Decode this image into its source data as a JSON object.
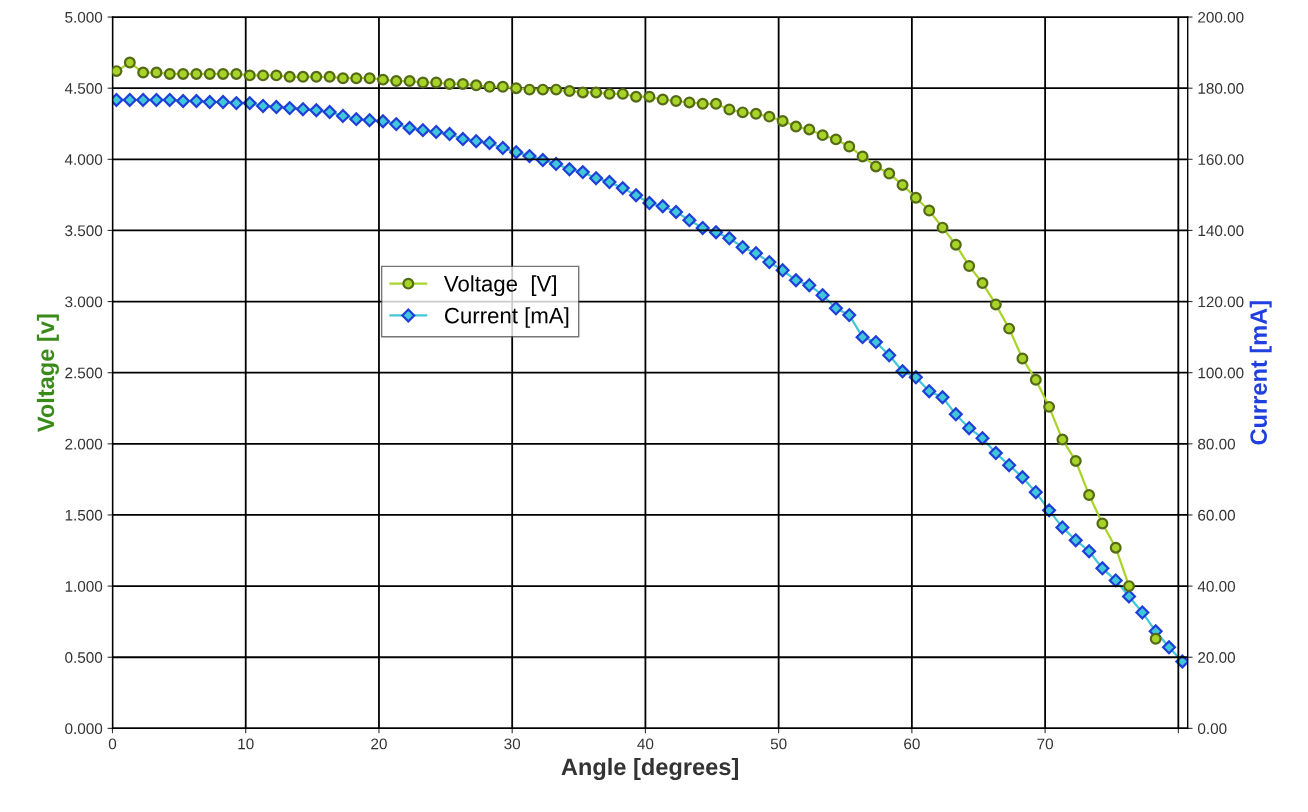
{
  "chart_data": {
    "type": "line",
    "xlabel": "Angle [degrees]",
    "ylabel": "Voltage [v]",
    "y2label": "Current [mA]",
    "x": [
      0.3,
      1.3,
      2.3,
      3.3,
      4.3,
      5.3,
      6.3,
      7.3,
      8.3,
      9.3,
      10.3,
      11.3,
      12.3,
      13.3,
      14.3,
      15.3,
      16.3,
      17.3,
      18.3,
      19.3,
      20.3,
      21.3,
      22.3,
      23.3,
      24.3,
      25.3,
      26.3,
      27.3,
      28.3,
      29.3,
      30.3,
      31.3,
      32.3,
      33.3,
      34.3,
      35.3,
      36.3,
      37.3,
      38.3,
      39.3,
      40.3,
      41.3,
      42.3,
      43.3,
      44.3,
      45.3,
      46.3,
      47.3,
      48.3,
      49.3,
      50.3,
      51.3,
      52.3,
      53.3,
      54.3,
      55.3,
      56.3,
      57.3,
      58.3,
      59.3,
      60.3,
      61.3,
      62.3,
      63.3,
      64.3,
      65.3,
      66.3,
      67.3,
      68.3,
      69.3,
      70.3,
      71.3,
      72.3,
      73.3,
      74.3,
      75.3,
      76.3,
      77.3,
      78.3,
      79.3,
      80.3
    ],
    "series": [
      {
        "name": "Voltage  [V]",
        "color": "#a8d42a",
        "marker": "circle",
        "values": [
          4.62,
          4.68,
          4.61,
          4.61,
          4.6,
          4.6,
          4.6,
          4.6,
          4.6,
          4.6,
          4.59,
          4.59,
          4.59,
          4.58,
          4.58,
          4.58,
          4.58,
          4.57,
          4.57,
          4.57,
          4.56,
          4.55,
          4.55,
          4.54,
          4.54,
          4.53,
          4.53,
          4.52,
          4.51,
          4.51,
          4.5,
          4.49,
          4.49,
          4.49,
          4.48,
          4.47,
          4.47,
          4.46,
          4.46,
          4.44,
          4.44,
          4.42,
          4.41,
          4.4,
          4.39,
          4.39,
          4.35,
          4.33,
          4.32,
          4.3,
          4.27,
          4.23,
          4.21,
          4.17,
          4.14,
          4.09,
          4.02,
          3.95,
          3.9,
          3.82,
          3.73,
          3.64,
          3.52,
          3.4,
          3.25,
          3.13,
          2.98,
          2.81,
          2.6,
          2.45,
          2.26,
          2.03,
          1.88,
          1.64,
          1.44,
          1.27,
          1.0,
          null,
          0.63,
          null,
          null
        ]
      },
      {
        "name": "Current [mA]",
        "color": "#40c8d8",
        "marker": "diamond",
        "axis": "y2",
        "values": [
          176.7,
          176.7,
          176.7,
          176.7,
          176.7,
          176.4,
          176.4,
          176.1,
          176.1,
          175.8,
          175.8,
          175.0,
          174.7,
          174.4,
          174.1,
          173.8,
          173.3,
          172.2,
          171.3,
          171.0,
          170.7,
          169.9,
          168.8,
          168.2,
          167.7,
          167.1,
          165.7,
          165.1,
          164.6,
          163.2,
          162.0,
          160.9,
          159.8,
          158.7,
          157.2,
          156.4,
          154.7,
          153.6,
          151.9,
          149.9,
          147.7,
          146.8,
          145.2,
          142.9,
          140.7,
          139.5,
          137.8,
          135.3,
          133.6,
          131.1,
          128.8,
          126.0,
          124.6,
          121.8,
          118.1,
          116.2,
          110.0,
          108.6,
          104.9,
          100.4,
          98.7,
          94.8,
          93.1,
          88.3,
          84.4,
          81.6,
          77.4,
          74.0,
          70.6,
          66.4,
          61.3,
          56.5,
          52.9,
          49.8,
          45.0,
          41.6,
          37.1,
          32.6,
          27.3,
          22.8,
          18.8
        ]
      }
    ],
    "xlim": [
      0,
      80.7
    ],
    "xticks": [
      0,
      10,
      20,
      30,
      40,
      50,
      60,
      70,
      {
        "value": 80,
        "label": null
      }
    ],
    "ylim": [
      0,
      5
    ],
    "yticks": [
      {
        "value": 0,
        "label": "0.000"
      },
      {
        "value": 0.5,
        "label": "0.500"
      },
      {
        "value": 1,
        "label": "1.000"
      },
      {
        "value": 1.5,
        "label": "1.500"
      },
      {
        "value": 2,
        "label": "2.000"
      },
      {
        "value": 2.5,
        "label": "2.500"
      },
      {
        "value": 3,
        "label": "3.000"
      },
      {
        "value": 3.5,
        "label": "3.500"
      },
      {
        "value": 4,
        "label": "4.000"
      },
      {
        "value": 4.5,
        "label": "4.500"
      },
      {
        "value": 5,
        "label": "5.000"
      }
    ],
    "y2lim": [
      0,
      200
    ],
    "y2ticks": [
      {
        "value": 0,
        "label": "0.00"
      },
      {
        "value": 20,
        "label": "20.00"
      },
      {
        "value": 40,
        "label": "40.00"
      },
      {
        "value": 60,
        "label": "60.00"
      },
      {
        "value": 80,
        "label": "80.00"
      },
      {
        "value": 100,
        "label": "100.00"
      },
      {
        "value": 120,
        "label": "120.00"
      },
      {
        "value": 140,
        "label": "140.00"
      },
      {
        "value": 160,
        "label": "160.00"
      },
      {
        "value": 180,
        "label": "180.00"
      },
      {
        "value": 200,
        "label": "200.00"
      }
    ],
    "grid": true,
    "legend": "center left",
    "line_style": "solid"
  }
}
